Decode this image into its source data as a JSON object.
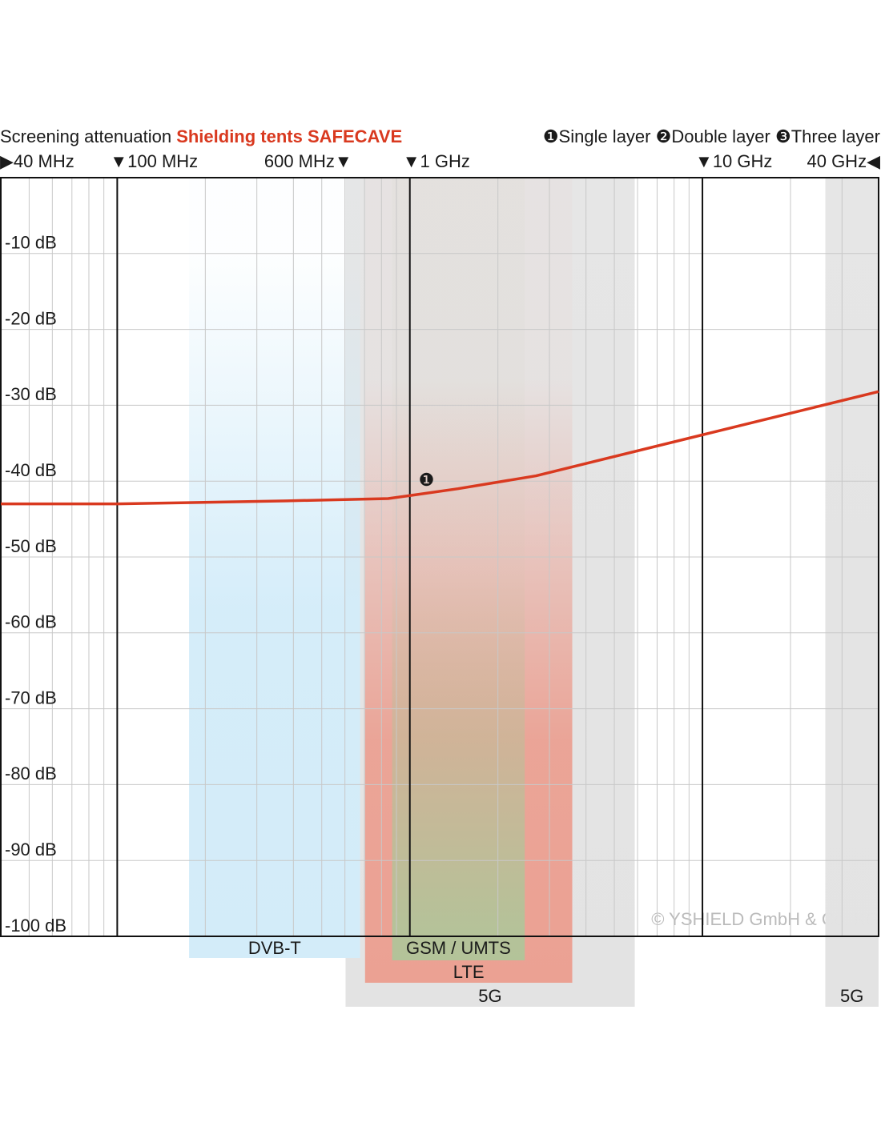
{
  "chart_data": {
    "type": "line",
    "title": "Screening attenuation",
    "subtitle": "Shielding tents SAFECAVE",
    "subtitle_color": "#d9391f",
    "legend": [
      "❶Single layer",
      "❷Double layer",
      "❸Three layer"
    ],
    "log_x": true,
    "xlim": [
      40,
      40000
    ],
    "ylim": [
      0,
      -100
    ],
    "xticks": [
      {
        "value": 40,
        "label": "▶40 MHz"
      },
      {
        "value": 100,
        "label": "▼100 MHz"
      },
      {
        "value": 600,
        "label": "600 MHz▼"
      },
      {
        "value": 1000,
        "label": "▼1 GHz"
      },
      {
        "value": 10000,
        "label": "▼10 GHz"
      },
      {
        "value": 40000,
        "label": "40 GHz◀"
      }
    ],
    "major_grid_x": [
      100,
      1000,
      10000
    ],
    "minor_grid_x": [
      50,
      60,
      70,
      80,
      90,
      200,
      300,
      400,
      500,
      600,
      700,
      800,
      900,
      2000,
      3000,
      4000,
      5000,
      6000,
      7000,
      8000,
      9000,
      20000,
      30000
    ],
    "yticks": [
      {
        "value": -10,
        "label": "-10 dB"
      },
      {
        "value": -20,
        "label": "-20 dB"
      },
      {
        "value": -30,
        "label": "-30 dB"
      },
      {
        "value": -40,
        "label": "-40 dB"
      },
      {
        "value": -50,
        "label": "-50 dB"
      },
      {
        "value": -60,
        "label": "-60 dB"
      },
      {
        "value": -70,
        "label": "-70 dB"
      },
      {
        "value": -80,
        "label": "-80 dB"
      },
      {
        "value": -90,
        "label": "-90 dB"
      },
      {
        "value": -100,
        "label": "-100 dB"
      }
    ],
    "grid": true,
    "bands": [
      {
        "name": "5G",
        "from": 603,
        "to": 5870,
        "color": "#e3e3e3"
      },
      {
        "name": "5G",
        "from": 26300,
        "to": 40000,
        "color": "#e3e3e3"
      },
      {
        "name": "LTE",
        "from": 703,
        "to": 3590,
        "color": "#eba193"
      },
      {
        "name": "GSM / UMTS",
        "from": 870,
        "to": 2470,
        "color": "#b3c399"
      },
      {
        "name": "DVB-T",
        "from": 176,
        "to": 676,
        "color": "#d3ecf9"
      }
    ],
    "series": [
      {
        "name": "❶",
        "color": "#d9391f",
        "x": [
          40,
          100,
          379,
          843,
          1000,
          1460,
          2700,
          10000,
          40000
        ],
        "values": [
          -43.0,
          -43.0,
          -42.6,
          -42.3,
          -41.9,
          -41.0,
          -39.3,
          -33.9,
          -28.2
        ]
      }
    ],
    "annotations": [
      {
        "text": "❶",
        "x": 1140,
        "y": -40
      }
    ],
    "copyright": "© YSHIELD GmbH & Co. KG"
  }
}
